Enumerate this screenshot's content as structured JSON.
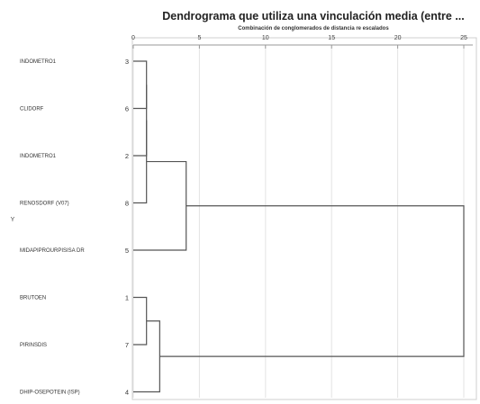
{
  "chart_data": {
    "type": "dendrogram",
    "title": "Dendrograma que utiliza una vinculación media (entre ...",
    "subtitle": "Combinación de conglomerados de distancia re escalados",
    "ylabel": "Y",
    "xlim": [
      0,
      25
    ],
    "xticks": [
      0,
      5,
      10,
      15,
      20,
      25
    ],
    "leaves": [
      {
        "label": "INDOMETRO1",
        "id": "3"
      },
      {
        "label": "CLIDORF",
        "id": "6"
      },
      {
        "label": "INDOMETRO1",
        "id": "2"
      },
      {
        "label": "RENOSDORF (V07)",
        "id": "8"
      },
      {
        "label": "MIDAPIPROURPISISA DR",
        "id": "5"
      },
      {
        "label": "BRUTOEN",
        "id": "1"
      },
      {
        "label": "PIRINSDIS",
        "id": "7"
      },
      {
        "label": "DHIP-OSEPOTEIN (ISP)",
        "id": "4"
      }
    ],
    "merges": [
      {
        "left": "leaf:0",
        "right": "leaf:1",
        "height": 1
      },
      {
        "left": "merge:0",
        "right": "leaf:2",
        "height": 1
      },
      {
        "left": "merge:1",
        "right": "leaf:3",
        "height": 1
      },
      {
        "left": "merge:2",
        "right": "leaf:4",
        "height": 4
      },
      {
        "left": "leaf:5",
        "right": "leaf:6",
        "height": 1
      },
      {
        "left": "merge:4",
        "right": "leaf:7",
        "height": 2
      },
      {
        "left": "merge:3",
        "right": "merge:5",
        "height": 25
      }
    ]
  }
}
